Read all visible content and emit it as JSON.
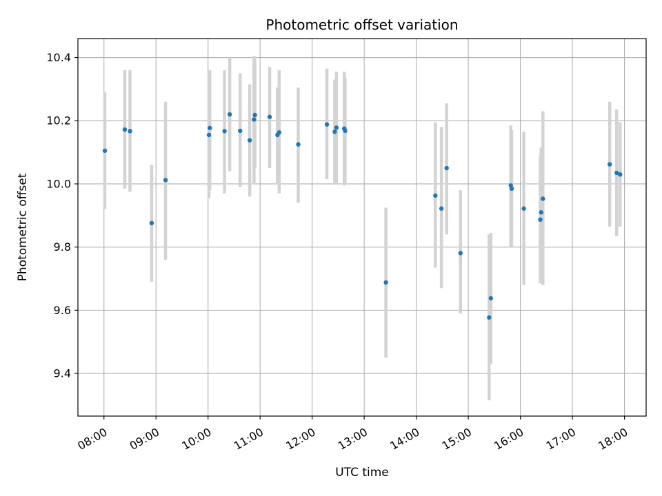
{
  "chart_data": {
    "type": "scatter",
    "title": "Photometric offset variation",
    "xlabel": "UTC time",
    "ylabel": "Photometric offset",
    "xlim": [
      "07:30",
      "18:25"
    ],
    "ylim": [
      9.265,
      10.46
    ],
    "grid": true,
    "colors": {
      "point": "#1f77b4",
      "errorbar": "#d3d3d3",
      "grid": "#b0b0b0"
    },
    "x_ticks": [
      "08:00",
      "09:00",
      "10:00",
      "11:00",
      "12:00",
      "13:00",
      "14:00",
      "15:00",
      "16:00",
      "17:00",
      "18:00"
    ],
    "y_ticks": [
      9.4,
      9.6,
      9.8,
      10.0,
      10.2,
      10.4
    ],
    "y_tick_labels": [
      "9.4",
      "9.6",
      "9.8",
      "10.0",
      "10.2",
      "10.4"
    ],
    "points": [
      {
        "x": "08:01",
        "y": 10.105,
        "ylow": 9.92,
        "yhigh": 10.29
      },
      {
        "x": "08:24",
        "y": 10.172,
        "ylow": 9.985,
        "yhigh": 10.36
      },
      {
        "x": "08:30",
        "y": 10.167,
        "ylow": 9.975,
        "yhigh": 10.36
      },
      {
        "x": "08:55",
        "y": 9.876,
        "ylow": 9.69,
        "yhigh": 10.06
      },
      {
        "x": "09:11",
        "y": 10.012,
        "ylow": 9.76,
        "yhigh": 10.26
      },
      {
        "x": "10:01",
        "y": 10.155,
        "ylow": 9.955,
        "yhigh": 10.355
      },
      {
        "x": "10:02",
        "y": 10.177,
        "ylow": 9.98,
        "yhigh": 10.36
      },
      {
        "x": "10:19",
        "y": 10.167,
        "ylow": 9.97,
        "yhigh": 10.36
      },
      {
        "x": "10:25",
        "y": 10.22,
        "ylow": 10.04,
        "yhigh": 10.4
      },
      {
        "x": "10:37",
        "y": 10.168,
        "ylow": 9.99,
        "yhigh": 10.35
      },
      {
        "x": "10:48",
        "y": 10.138,
        "ylow": 9.96,
        "yhigh": 10.315
      },
      {
        "x": "10:53",
        "y": 10.204,
        "ylow": 10.0,
        "yhigh": 10.405
      },
      {
        "x": "10:54",
        "y": 10.218,
        "ylow": 10.05,
        "yhigh": 10.395
      },
      {
        "x": "11:11",
        "y": 10.212,
        "ylow": 10.05,
        "yhigh": 10.37
      },
      {
        "x": "11:20",
        "y": 10.155,
        "ylow": 10.0,
        "yhigh": 10.305
      },
      {
        "x": "11:22",
        "y": 10.163,
        "ylow": 9.97,
        "yhigh": 10.36
      },
      {
        "x": "11:44",
        "y": 10.125,
        "ylow": 9.94,
        "yhigh": 10.305
      },
      {
        "x": "12:17",
        "y": 10.188,
        "ylow": 10.015,
        "yhigh": 10.365
      },
      {
        "x": "12:26",
        "y": 10.165,
        "ylow": 10.0,
        "yhigh": 10.33
      },
      {
        "x": "12:28",
        "y": 10.178,
        "ylow": 10.0,
        "yhigh": 10.355
      },
      {
        "x": "12:37",
        "y": 10.175,
        "ylow": 9.995,
        "yhigh": 10.355
      },
      {
        "x": "12:38",
        "y": 10.168,
        "ylow": 10.0,
        "yhigh": 10.335
      },
      {
        "x": "13:25",
        "y": 9.688,
        "ylow": 9.45,
        "yhigh": 9.925
      },
      {
        "x": "14:22",
        "y": 9.963,
        "ylow": 9.735,
        "yhigh": 10.195
      },
      {
        "x": "14:29",
        "y": 9.922,
        "ylow": 9.67,
        "yhigh": 10.18
      },
      {
        "x": "14:35",
        "y": 10.05,
        "ylow": 9.84,
        "yhigh": 10.255
      },
      {
        "x": "14:51",
        "y": 9.781,
        "ylow": 9.59,
        "yhigh": 9.98
      },
      {
        "x": "15:24",
        "y": 9.577,
        "ylow": 9.315,
        "yhigh": 9.84
      },
      {
        "x": "15:26",
        "y": 9.638,
        "ylow": 9.43,
        "yhigh": 9.845
      },
      {
        "x": "15:49",
        "y": 9.995,
        "ylow": 9.8,
        "yhigh": 10.185
      },
      {
        "x": "15:50",
        "y": 9.985,
        "ylow": 9.8,
        "yhigh": 10.17
      },
      {
        "x": "16:04",
        "y": 9.922,
        "ylow": 9.68,
        "yhigh": 10.165
      },
      {
        "x": "16:23",
        "y": 9.887,
        "ylow": 9.685,
        "yhigh": 10.09
      },
      {
        "x": "16:24",
        "y": 9.91,
        "ylow": 9.69,
        "yhigh": 10.115
      },
      {
        "x": "16:26",
        "y": 9.953,
        "ylow": 9.68,
        "yhigh": 10.23
      },
      {
        "x": "17:43",
        "y": 10.062,
        "ylow": 9.865,
        "yhigh": 10.26
      },
      {
        "x": "17:51",
        "y": 10.035,
        "ylow": 9.835,
        "yhigh": 10.235
      },
      {
        "x": "17:55",
        "y": 10.03,
        "ylow": 9.865,
        "yhigh": 10.195
      }
    ]
  }
}
